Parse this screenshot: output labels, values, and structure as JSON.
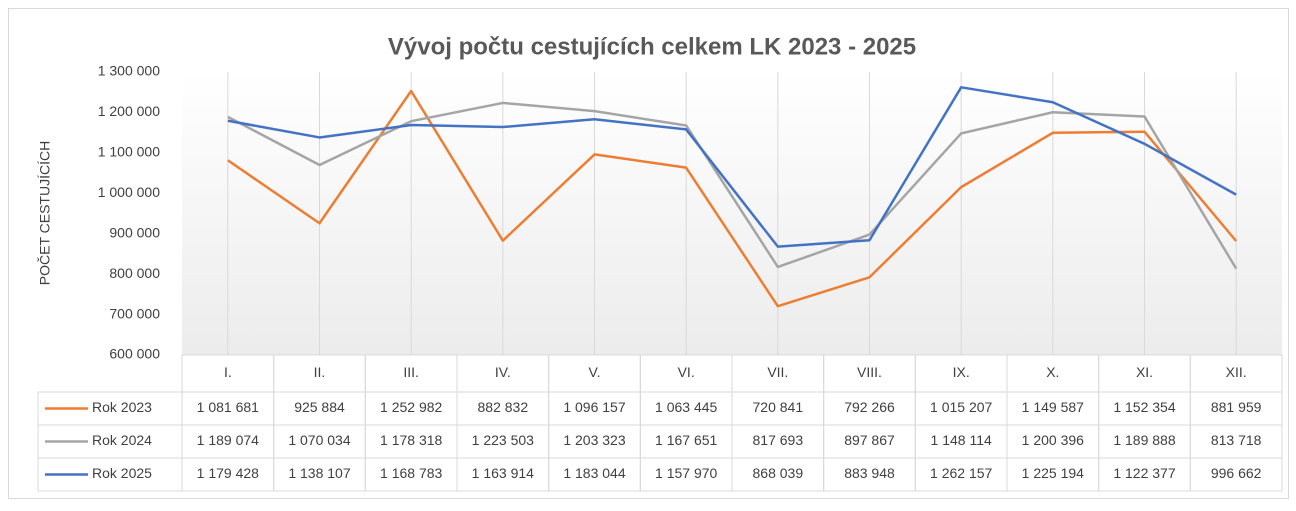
{
  "chart_data": {
    "type": "line",
    "title": "Vývoj počtu cestujících celkem LK 2023 - 2025",
    "y_label": "POČET CESTUJÍCÍCH",
    "categories": [
      "I.",
      "II.",
      "III.",
      "IV.",
      "V.",
      "VI.",
      "VII.",
      "VIII.",
      "IX.",
      "X.",
      "XI.",
      "XII."
    ],
    "series": [
      {
        "name": "Rok 2023",
        "color": "#ED7D31",
        "values": [
          1081681,
          925884,
          1252982,
          882832,
          1096157,
          1063445,
          720841,
          792266,
          1015207,
          1149587,
          1152354,
          881959
        ],
        "value_labels": [
          "1 081 681",
          "925 884",
          "1 252 982",
          "882 832",
          "1 096 157",
          "1 063 445",
          "720 841",
          "792 266",
          "1 015 207",
          "1 149 587",
          "1 152 354",
          "881 959"
        ]
      },
      {
        "name": "Rok 2024",
        "color": "#A5A5A5",
        "values": [
          1189074,
          1070034,
          1178318,
          1223503,
          1203323,
          1167651,
          817693,
          897867,
          1148114,
          1200396,
          1189888,
          813718
        ],
        "value_labels": [
          "1 189 074",
          "1 070 034",
          "1 178 318",
          "1 223 503",
          "1 203 323",
          "1 167 651",
          "817 693",
          "897 867",
          "1 148 114",
          "1 200 396",
          "1 189 888",
          "813 718"
        ]
      },
      {
        "name": "Rok 2025",
        "color": "#4472C4",
        "values": [
          1179428,
          1138107,
          1168783,
          1163914,
          1183044,
          1157970,
          868039,
          883948,
          1262157,
          1225194,
          1122377,
          996662
        ],
        "value_labels": [
          "1 179 428",
          "1 138 107",
          "1 168 783",
          "1 163 914",
          "1 183 044",
          "1 157 970",
          "868 039",
          "883 948",
          "1 262 157",
          "1 225 194",
          "1 122 377",
          "996 662"
        ]
      }
    ],
    "ylim": [
      600000,
      1300000
    ],
    "yticks": [
      {
        "value": 600000,
        "label": "600 000"
      },
      {
        "value": 700000,
        "label": "700 000"
      },
      {
        "value": 800000,
        "label": "800 000"
      },
      {
        "value": 900000,
        "label": "900 000"
      },
      {
        "value": 1000000,
        "label": "1 000 000"
      },
      {
        "value": 1100000,
        "label": "1 100 000"
      },
      {
        "value": 1200000,
        "label": "1 200 000"
      },
      {
        "value": 1300000,
        "label": "1 300 000"
      }
    ]
  }
}
